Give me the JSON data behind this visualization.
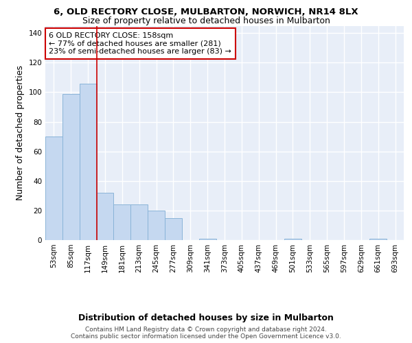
{
  "title": "6, OLD RECTORY CLOSE, MULBARTON, NORWICH, NR14 8LX",
  "subtitle": "Size of property relative to detached houses in Mulbarton",
  "xlabel": "Distribution of detached houses by size in Mulbarton",
  "ylabel": "Number of detached properties",
  "categories": [
    "53sqm",
    "85sqm",
    "117sqm",
    "149sqm",
    "181sqm",
    "213sqm",
    "245sqm",
    "277sqm",
    "309sqm",
    "341sqm",
    "373sqm",
    "405sqm",
    "437sqm",
    "469sqm",
    "501sqm",
    "533sqm",
    "565sqm",
    "597sqm",
    "629sqm",
    "661sqm",
    "693sqm"
  ],
  "values": [
    70,
    99,
    106,
    32,
    24,
    24,
    20,
    15,
    0,
    1,
    0,
    0,
    0,
    0,
    1,
    0,
    0,
    0,
    0,
    1,
    0
  ],
  "bar_color": "#c5d8f0",
  "bar_edge_color": "#8ab4d8",
  "highlight_line_color": "#cc0000",
  "annotation_text": "6 OLD RECTORY CLOSE: 158sqm\n← 77% of detached houses are smaller (281)\n23% of semi-detached houses are larger (83) →",
  "annotation_box_color": "white",
  "annotation_box_edge": "#cc0000",
  "ylim": [
    0,
    145
  ],
  "yticks": [
    0,
    20,
    40,
    60,
    80,
    100,
    120,
    140
  ],
  "footer": "Contains HM Land Registry data © Crown copyright and database right 2024.\nContains public sector information licensed under the Open Government Licence v3.0.",
  "bg_color": "#ffffff",
  "plot_bg_color": "#e8eef8",
  "grid_color": "#ffffff",
  "title_fontsize": 9.5,
  "subtitle_fontsize": 9,
  "axis_label_fontsize": 9,
  "tick_fontsize": 7.5,
  "footer_fontsize": 6.5,
  "annot_fontsize": 8
}
